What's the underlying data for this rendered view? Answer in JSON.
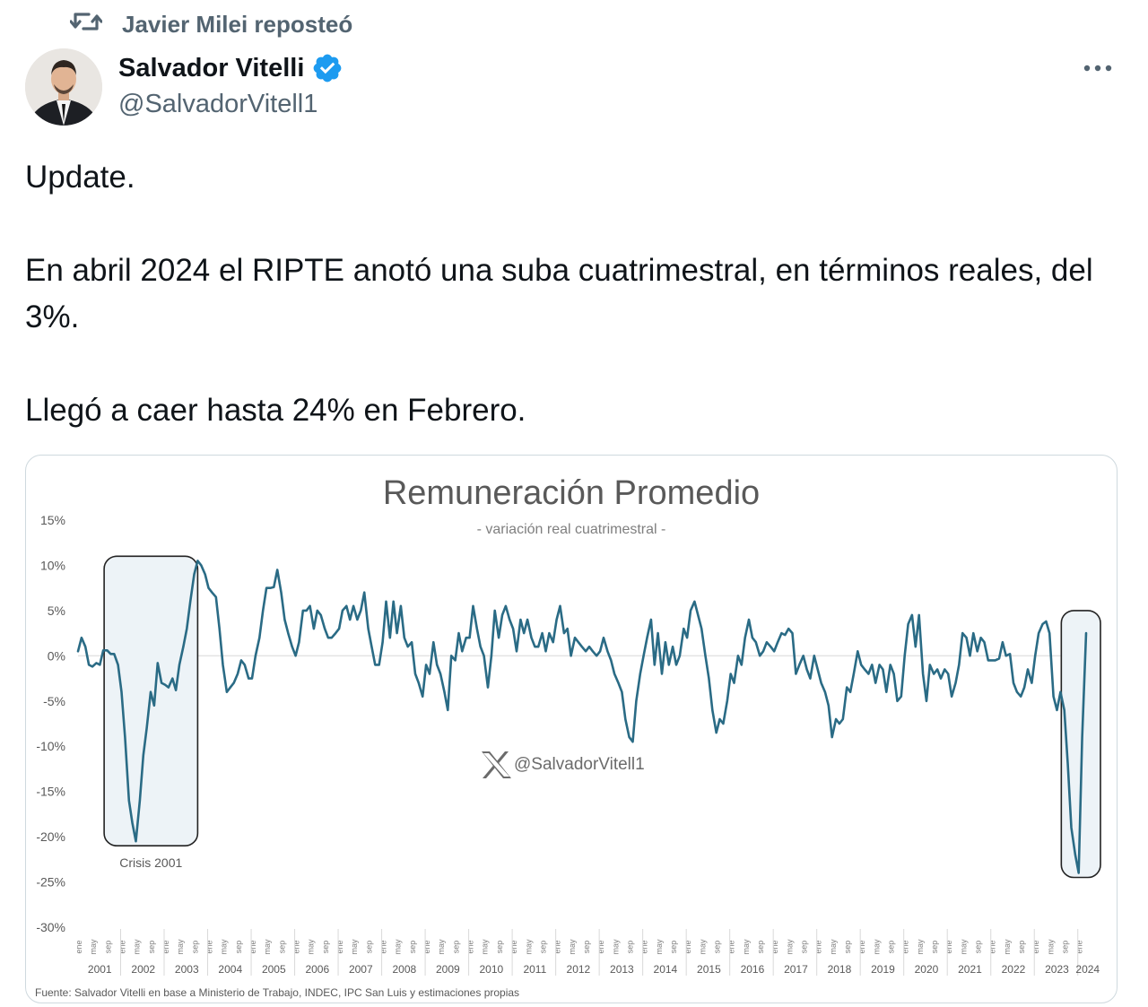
{
  "repost": {
    "text": "Javier Milei reposteó",
    "icon": "repost-icon"
  },
  "author": {
    "name": "Salvador Vitelli",
    "handle": "@SalvadorVitell1",
    "verified": true,
    "verified_color": "#1d9bf0"
  },
  "tweet": {
    "line1": "Update.",
    "line2": "En abril 2024 el RIPTE anotó una suba cuatrimestral, en términos reales, del 3%.",
    "line3": "Llegó a caer hasta 24% en Febrero."
  },
  "chart_data": {
    "type": "line",
    "title": "Remuneración Promedio",
    "subtitle": "- variación real cuatrimestral -",
    "ylabel": "",
    "xlabel": "",
    "ylim": [
      -30,
      15
    ],
    "yticks": [
      15,
      10,
      5,
      0,
      -5,
      -10,
      -15,
      -20,
      -25,
      -30
    ],
    "ytick_labels": [
      "15%",
      "10%",
      "5%",
      "0%",
      "-5%",
      "-10%",
      "-15%",
      "-20%",
      "-25%",
      "-30%"
    ],
    "month_labels": [
      "ene",
      "may",
      "sep"
    ],
    "years": [
      "2001",
      "2002",
      "2003",
      "2004",
      "2005",
      "2006",
      "2007",
      "2008",
      "2009",
      "2010",
      "2011",
      "2012",
      "2013",
      "2014",
      "2015",
      "2016",
      "2017",
      "2018",
      "2019",
      "2020",
      "2021",
      "2022",
      "2023",
      "2024"
    ],
    "series_color": "#2a6b85",
    "grid": false,
    "annotations": [
      {
        "label": "Crisis 2001",
        "x_from": 2001.6,
        "x_to": 2003.75
      },
      {
        "label": "",
        "x_from": 2023.6,
        "x_to": 2024.5
      }
    ],
    "watermark": "@SalvadorVitell1",
    "source": "Fuente: Salvador Vitelli en base a Ministerio de Trabajo, INDEC, IPC San Luis y estimaciones propias",
    "points": [
      [
        2001.0,
        0.5
      ],
      [
        2001.08,
        2
      ],
      [
        2001.17,
        1
      ],
      [
        2001.25,
        -1
      ],
      [
        2001.33,
        -1.2
      ],
      [
        2001.42,
        -0.8
      ],
      [
        2001.5,
        -1
      ],
      [
        2001.58,
        0.6
      ],
      [
        2001.67,
        0.6
      ],
      [
        2001.75,
        0.2
      ],
      [
        2001.83,
        0.2
      ],
      [
        2001.92,
        -1
      ],
      [
        2002.0,
        -4
      ],
      [
        2002.08,
        -9
      ],
      [
        2002.17,
        -16
      ],
      [
        2002.25,
        -18.5
      ],
      [
        2002.33,
        -20.5
      ],
      [
        2002.42,
        -16
      ],
      [
        2002.5,
        -11
      ],
      [
        2002.58,
        -8
      ],
      [
        2002.67,
        -4
      ],
      [
        2002.75,
        -5.5
      ],
      [
        2002.83,
        -0.8
      ],
      [
        2002.92,
        -3
      ],
      [
        2003.0,
        -3.2
      ],
      [
        2003.08,
        -3.5
      ],
      [
        2003.17,
        -2.5
      ],
      [
        2003.25,
        -3.8
      ],
      [
        2003.33,
        -1
      ],
      [
        2003.42,
        1
      ],
      [
        2003.5,
        3
      ],
      [
        2003.58,
        6
      ],
      [
        2003.67,
        9
      ],
      [
        2003.75,
        10.5
      ],
      [
        2003.83,
        10
      ],
      [
        2003.92,
        9
      ],
      [
        2004.0,
        7.5
      ],
      [
        2004.08,
        7
      ],
      [
        2004.17,
        6.5
      ],
      [
        2004.25,
        3
      ],
      [
        2004.33,
        -1
      ],
      [
        2004.42,
        -4
      ],
      [
        2004.5,
        -3.5
      ],
      [
        2004.58,
        -3
      ],
      [
        2004.67,
        -2
      ],
      [
        2004.75,
        -0.5
      ],
      [
        2004.83,
        -1
      ],
      [
        2004.92,
        -2.5
      ],
      [
        2005.0,
        -2.5
      ],
      [
        2005.08,
        0
      ],
      [
        2005.17,
        2
      ],
      [
        2005.25,
        5
      ],
      [
        2005.33,
        7.5
      ],
      [
        2005.42,
        7.5
      ],
      [
        2005.5,
        7.6
      ],
      [
        2005.58,
        9.5
      ],
      [
        2005.67,
        7
      ],
      [
        2005.75,
        4
      ],
      [
        2005.83,
        2.5
      ],
      [
        2005.92,
        1
      ],
      [
        2006.0,
        0
      ],
      [
        2006.08,
        1.5
      ],
      [
        2006.17,
        5
      ],
      [
        2006.25,
        5
      ],
      [
        2006.33,
        5.5
      ],
      [
        2006.42,
        3
      ],
      [
        2006.5,
        5
      ],
      [
        2006.58,
        4.5
      ],
      [
        2006.67,
        3
      ],
      [
        2006.75,
        2
      ],
      [
        2006.83,
        2
      ],
      [
        2006.92,
        2.5
      ],
      [
        2007.0,
        3
      ],
      [
        2007.08,
        5
      ],
      [
        2007.17,
        5.5
      ],
      [
        2007.25,
        4
      ],
      [
        2007.33,
        5.5
      ],
      [
        2007.42,
        4
      ],
      [
        2007.5,
        5
      ],
      [
        2007.58,
        7
      ],
      [
        2007.67,
        3
      ],
      [
        2007.75,
        1
      ],
      [
        2007.83,
        -1
      ],
      [
        2007.92,
        -1
      ],
      [
        2008.0,
        1.5
      ],
      [
        2008.08,
        6
      ],
      [
        2008.17,
        2
      ],
      [
        2008.25,
        6
      ],
      [
        2008.33,
        2.5
      ],
      [
        2008.42,
        5.5
      ],
      [
        2008.5,
        2
      ],
      [
        2008.58,
        1
      ],
      [
        2008.67,
        1.5
      ],
      [
        2008.75,
        -2
      ],
      [
        2008.83,
        -3
      ],
      [
        2008.92,
        -4.5
      ],
      [
        2009.0,
        -1
      ],
      [
        2009.08,
        -2
      ],
      [
        2009.17,
        1.5
      ],
      [
        2009.25,
        -1
      ],
      [
        2009.33,
        -2
      ],
      [
        2009.42,
        -4
      ],
      [
        2009.5,
        -6
      ],
      [
        2009.58,
        0
      ],
      [
        2009.67,
        -0.5
      ],
      [
        2009.75,
        2.5
      ],
      [
        2009.83,
        0.5
      ],
      [
        2009.92,
        2
      ],
      [
        2010.0,
        2
      ],
      [
        2010.08,
        5.5
      ],
      [
        2010.17,
        3
      ],
      [
        2010.25,
        1
      ],
      [
        2010.33,
        0
      ],
      [
        2010.42,
        -3.5
      ],
      [
        2010.5,
        0
      ],
      [
        2010.58,
        5
      ],
      [
        2010.67,
        2
      ],
      [
        2010.75,
        4.5
      ],
      [
        2010.83,
        5.5
      ],
      [
        2010.92,
        4
      ],
      [
        2011.0,
        3
      ],
      [
        2011.08,
        0.5
      ],
      [
        2011.17,
        4
      ],
      [
        2011.25,
        2.5
      ],
      [
        2011.33,
        4
      ],
      [
        2011.42,
        2
      ],
      [
        2011.5,
        1
      ],
      [
        2011.58,
        1
      ],
      [
        2011.67,
        2.5
      ],
      [
        2011.75,
        0.5
      ],
      [
        2011.83,
        2.5
      ],
      [
        2011.92,
        1.5
      ],
      [
        2012.0,
        4
      ],
      [
        2012.08,
        5.5
      ],
      [
        2012.17,
        2.5
      ],
      [
        2012.25,
        3
      ],
      [
        2012.33,
        0
      ],
      [
        2012.42,
        2
      ],
      [
        2012.5,
        1.5
      ],
      [
        2012.58,
        1
      ],
      [
        2012.67,
        0.5
      ],
      [
        2012.75,
        1
      ],
      [
        2012.83,
        0.5
      ],
      [
        2012.92,
        0
      ],
      [
        2013.0,
        0.5
      ],
      [
        2013.08,
        2
      ],
      [
        2013.17,
        0.5
      ],
      [
        2013.25,
        -0.5
      ],
      [
        2013.33,
        -2
      ],
      [
        2013.42,
        -3
      ],
      [
        2013.5,
        -4
      ],
      [
        2013.58,
        -7
      ],
      [
        2013.67,
        -9
      ],
      [
        2013.75,
        -9.5
      ],
      [
        2013.83,
        -5
      ],
      [
        2013.92,
        -2
      ],
      [
        2014.0,
        0
      ],
      [
        2014.08,
        2
      ],
      [
        2014.17,
        4
      ],
      [
        2014.25,
        -1
      ],
      [
        2014.33,
        2.5
      ],
      [
        2014.42,
        -2
      ],
      [
        2014.5,
        1.5
      ],
      [
        2014.58,
        -1
      ],
      [
        2014.67,
        1
      ],
      [
        2014.75,
        -1
      ],
      [
        2014.83,
        0
      ],
      [
        2014.92,
        3
      ],
      [
        2015.0,
        2
      ],
      [
        2015.08,
        5
      ],
      [
        2015.17,
        6
      ],
      [
        2015.25,
        4.5
      ],
      [
        2015.33,
        3
      ],
      [
        2015.42,
        0
      ],
      [
        2015.5,
        -2.5
      ],
      [
        2015.58,
        -6
      ],
      [
        2015.67,
        -8.5
      ],
      [
        2015.75,
        -7
      ],
      [
        2015.83,
        -7.5
      ],
      [
        2015.92,
        -5
      ],
      [
        2016.0,
        -2
      ],
      [
        2016.08,
        -3
      ],
      [
        2016.17,
        0
      ],
      [
        2016.25,
        -1
      ],
      [
        2016.33,
        2
      ],
      [
        2016.42,
        4
      ],
      [
        2016.5,
        2
      ],
      [
        2016.58,
        1.5
      ],
      [
        2016.67,
        0
      ],
      [
        2016.75,
        0.5
      ],
      [
        2016.83,
        1.5
      ],
      [
        2016.92,
        1
      ],
      [
        2017.0,
        0.5
      ],
      [
        2017.08,
        1.5
      ],
      [
        2017.17,
        2.5
      ],
      [
        2017.25,
        2.3
      ],
      [
        2017.33,
        3
      ],
      [
        2017.42,
        2.5
      ],
      [
        2017.5,
        -2
      ],
      [
        2017.58,
        -1
      ],
      [
        2017.67,
        0
      ],
      [
        2017.75,
        -1.5
      ],
      [
        2017.83,
        -2.5
      ],
      [
        2017.92,
        0
      ],
      [
        2018.0,
        -1.5
      ],
      [
        2018.08,
        -3
      ],
      [
        2018.17,
        -4
      ],
      [
        2018.25,
        -5.5
      ],
      [
        2018.33,
        -9
      ],
      [
        2018.42,
        -7
      ],
      [
        2018.5,
        -7.5
      ],
      [
        2018.58,
        -7
      ],
      [
        2018.67,
        -3.5
      ],
      [
        2018.75,
        -4
      ],
      [
        2018.83,
        -2
      ],
      [
        2018.92,
        0.5
      ],
      [
        2019.0,
        -1
      ],
      [
        2019.08,
        -1.5
      ],
      [
        2019.17,
        -2
      ],
      [
        2019.25,
        -1
      ],
      [
        2019.33,
        -3
      ],
      [
        2019.42,
        -1
      ],
      [
        2019.5,
        -1.5
      ],
      [
        2019.58,
        -4
      ],
      [
        2019.67,
        -1
      ],
      [
        2019.75,
        -2
      ],
      [
        2019.83,
        -5
      ],
      [
        2019.92,
        -4.5
      ],
      [
        2020.0,
        0
      ],
      [
        2020.08,
        3.5
      ],
      [
        2020.17,
        4.5
      ],
      [
        2020.25,
        1
      ],
      [
        2020.33,
        4.5
      ],
      [
        2020.42,
        -2
      ],
      [
        2020.5,
        -5
      ],
      [
        2020.58,
        -1
      ],
      [
        2020.67,
        -2
      ],
      [
        2020.75,
        -1.5
      ],
      [
        2020.83,
        -2.5
      ],
      [
        2020.92,
        -1.5
      ],
      [
        2021.0,
        -2
      ],
      [
        2021.08,
        -4.5
      ],
      [
        2021.17,
        -3
      ],
      [
        2021.25,
        -1
      ],
      [
        2021.33,
        2.5
      ],
      [
        2021.42,
        2
      ],
      [
        2021.5,
        0
      ],
      [
        2021.58,
        2.5
      ],
      [
        2021.67,
        0.5
      ],
      [
        2021.75,
        2
      ],
      [
        2021.83,
        1.5
      ],
      [
        2021.92,
        -0.5
      ],
      [
        2022.0,
        -0.5
      ],
      [
        2022.08,
        -0.5
      ],
      [
        2022.17,
        -0.3
      ],
      [
        2022.25,
        1.5
      ],
      [
        2022.33,
        0
      ],
      [
        2022.42,
        0.2
      ],
      [
        2022.5,
        -3
      ],
      [
        2022.58,
        -4
      ],
      [
        2022.67,
        -4.5
      ],
      [
        2022.75,
        -3.5
      ],
      [
        2022.83,
        -1.5
      ],
      [
        2022.92,
        -3
      ],
      [
        2023.0,
        0
      ],
      [
        2023.08,
        2.5
      ],
      [
        2023.17,
        3.5
      ],
      [
        2023.25,
        3.8
      ],
      [
        2023.33,
        2.5
      ],
      [
        2023.42,
        -4.5
      ],
      [
        2023.5,
        -6
      ],
      [
        2023.58,
        -4
      ],
      [
        2023.67,
        -6
      ],
      [
        2023.75,
        -12
      ],
      [
        2023.83,
        -19
      ],
      [
        2023.92,
        -22
      ],
      [
        2024.0,
        -24
      ],
      [
        2024.08,
        -9
      ],
      [
        2024.17,
        2.5
      ]
    ]
  }
}
